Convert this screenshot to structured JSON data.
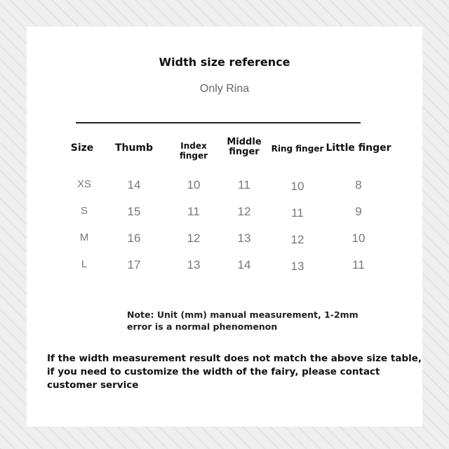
{
  "title": "Width size reference",
  "brand": "Only Rina",
  "table": {
    "headers": [
      "Size",
      "Thumb",
      "Index finger",
      "Middle finger",
      "Ring finger",
      "Little finger"
    ],
    "rows": [
      [
        "XS",
        "14",
        "10",
        "11",
        "10",
        "8"
      ],
      [
        "S",
        "15",
        "11",
        "12",
        "11",
        "9"
      ],
      [
        "M",
        "16",
        "12",
        "13",
        "12",
        "10"
      ],
      [
        "L",
        "17",
        "13",
        "14",
        "13",
        "11"
      ]
    ]
  },
  "note": "Note: Unit (mm) manual measurement, 1-2mm error is a normal phenomenon",
  "footer": "If the width measurement result does not match the above size table, if you need to customize the width of the fairy, please contact customer service"
}
